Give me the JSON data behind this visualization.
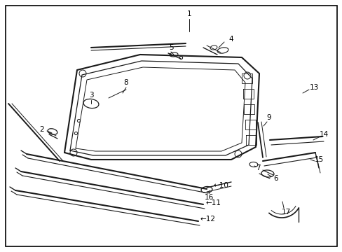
{
  "background_color": "#ffffff",
  "border_color": "#000000",
  "line_color": "#1a1a1a",
  "fig_width": 4.89,
  "fig_height": 3.6,
  "dpi": 100
}
